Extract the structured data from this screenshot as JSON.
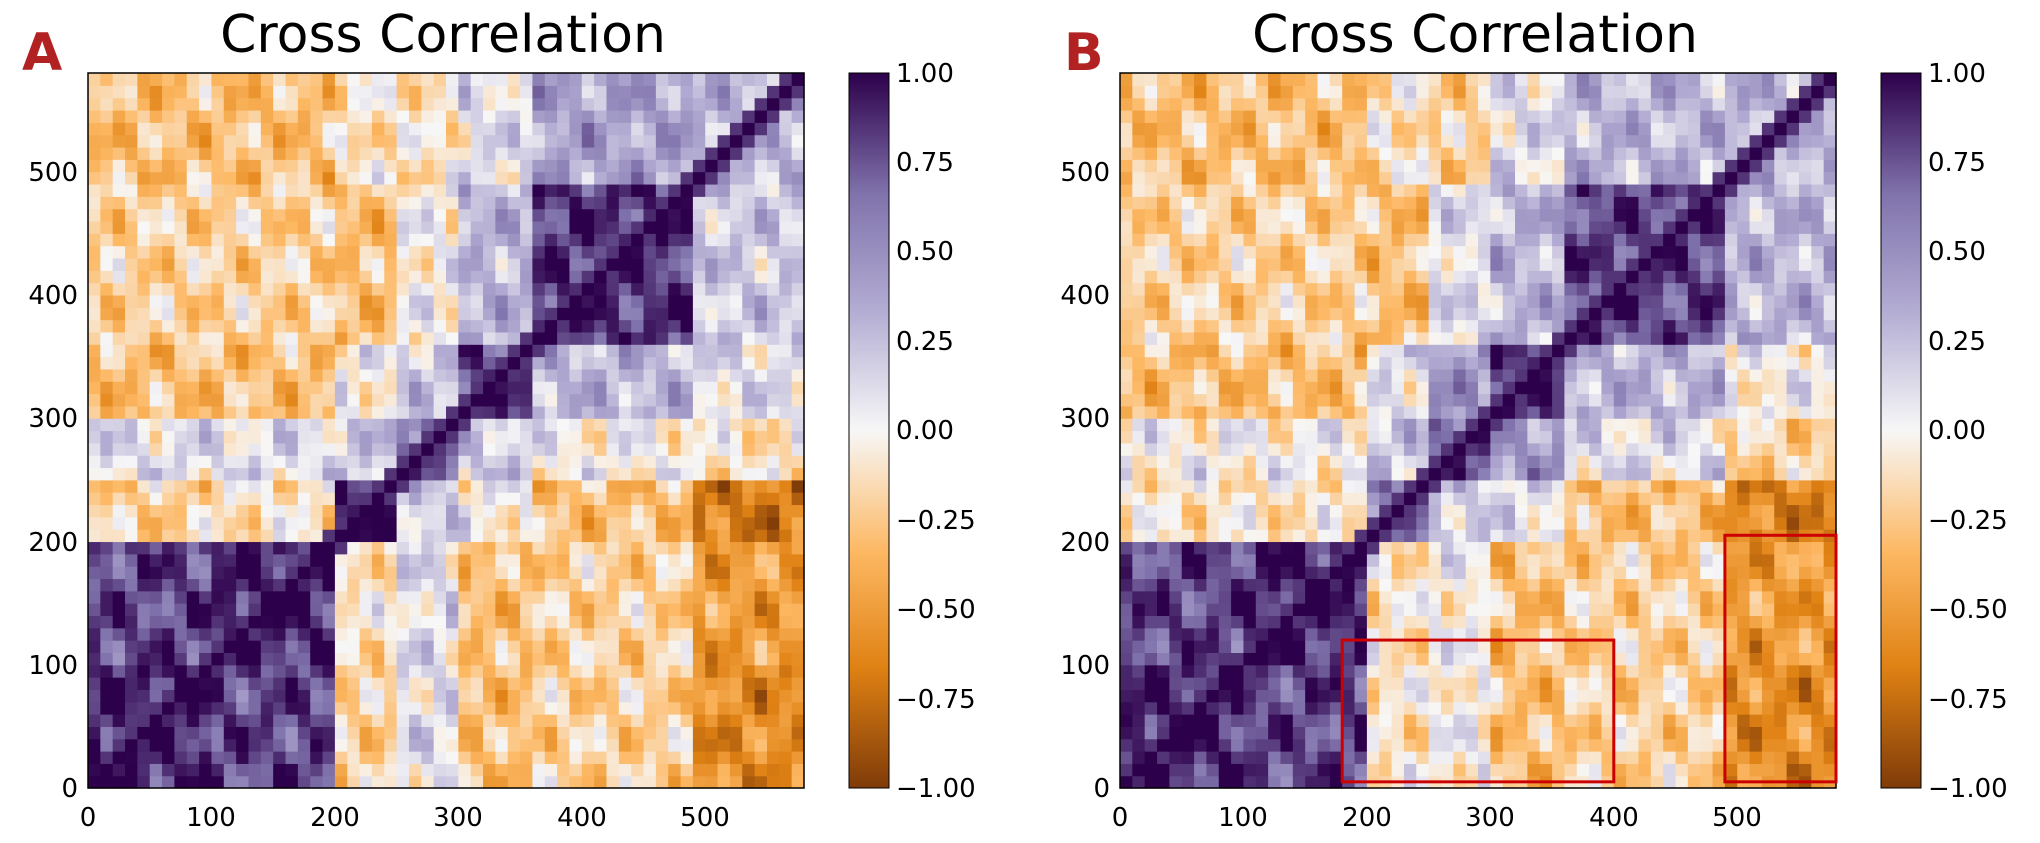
{
  "chart_data": [
    {
      "type": "heatmap",
      "panel_label": "A",
      "title": "Cross Correlation",
      "xlabel": "",
      "ylabel": "",
      "xlim": [
        0,
        580
      ],
      "ylim": [
        0,
        580
      ],
      "xticks": [
        "0",
        "100",
        "200",
        "300",
        "400",
        "500"
      ],
      "xtick_values": [
        0,
        100,
        200,
        300,
        400,
        500
      ],
      "yticks": [
        "0",
        "100",
        "200",
        "300",
        "400",
        "500"
      ],
      "ytick_values": [
        0,
        100,
        200,
        300,
        400,
        500
      ],
      "colorbar": {
        "range": [
          -1.0,
          1.0
        ],
        "ticks": [
          "−1.00",
          "−0.75",
          "−0.50",
          "−0.25",
          "0.00",
          "0.25",
          "0.50",
          "0.75",
          "1.00"
        ],
        "tick_values": [
          -1.0,
          -0.75,
          -0.5,
          -0.25,
          0.0,
          0.25,
          0.5,
          0.75,
          1.0
        ],
        "colormap": [
          "#7f3b08",
          "#e08214",
          "#fdb863",
          "#f7f7f7",
          "#b2abd2",
          "#8073ac",
          "#2d004b"
        ]
      },
      "highlight_boxes": [],
      "highlight_color": "#cc0000"
    },
    {
      "type": "heatmap",
      "panel_label": "B",
      "title": "Cross Correlation",
      "xlabel": "",
      "ylabel": "",
      "xlim": [
        0,
        580
      ],
      "ylim": [
        0,
        580
      ],
      "xticks": [
        "0",
        "100",
        "200",
        "300",
        "400",
        "500"
      ],
      "xtick_values": [
        0,
        100,
        200,
        300,
        400,
        500
      ],
      "yticks": [
        "0",
        "100",
        "200",
        "300",
        "400",
        "500"
      ],
      "ytick_values": [
        0,
        100,
        200,
        300,
        400,
        500
      ],
      "colorbar": {
        "range": [
          -1.0,
          1.0
        ],
        "ticks": [
          "−1.00",
          "−0.75",
          "−0.50",
          "−0.25",
          "0.00",
          "0.25",
          "0.50",
          "0.75",
          "1.00"
        ],
        "tick_values": [
          -1.0,
          -0.75,
          -0.5,
          -0.25,
          0.0,
          0.25,
          0.5,
          0.75,
          1.0
        ],
        "colormap": [
          "#7f3b08",
          "#e08214",
          "#fdb863",
          "#f7f7f7",
          "#b2abd2",
          "#8073ac",
          "#2d004b"
        ]
      },
      "highlight_boxes": [
        {
          "x0": 180,
          "x1": 400,
          "y0": 5,
          "y1": 120
        },
        {
          "x0": 490,
          "x1": 580,
          "y0": 5,
          "y1": 205
        }
      ],
      "highlight_color": "#cc0000"
    }
  ]
}
